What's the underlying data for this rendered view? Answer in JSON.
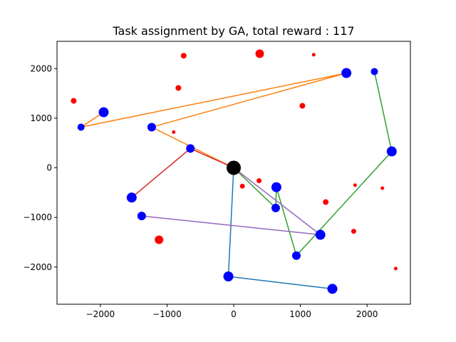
{
  "chart_data": {
    "type": "scatter",
    "title": "Task assignment by GA, total reward : 117",
    "xlabel": "",
    "ylabel": "",
    "xlim": [
      -2650,
      2650
    ],
    "ylim": [
      -2750,
      2550
    ],
    "xticks": [
      -2000,
      -1000,
      0,
      1000,
      2000
    ],
    "yticks": [
      -2000,
      -1000,
      0,
      1000,
      2000
    ],
    "grid": false,
    "depot": {
      "x": 0,
      "y": 0,
      "size": 10,
      "color": "#000000"
    },
    "assigned_color": "#0000ff",
    "unassigned_color": "#ff0000",
    "assigned_tasks": [
      {
        "x": 1690,
        "y": 1910,
        "size": 7
      },
      {
        "x": 2110,
        "y": 1940,
        "size": 5
      },
      {
        "x": -1950,
        "y": 1120,
        "size": 7
      },
      {
        "x": -2290,
        "y": 820,
        "size": 5
      },
      {
        "x": -1230,
        "y": 820,
        "size": 6
      },
      {
        "x": -650,
        "y": 390,
        "size": 6
      },
      {
        "x": 2370,
        "y": 330,
        "size": 7
      },
      {
        "x": 640,
        "y": -390,
        "size": 7
      },
      {
        "x": 630,
        "y": -810,
        "size": 6
      },
      {
        "x": -1530,
        "y": -600,
        "size": 7
      },
      {
        "x": -1380,
        "y": -970,
        "size": 6
      },
      {
        "x": 1300,
        "y": -1350,
        "size": 7
      },
      {
        "x": 940,
        "y": -1770,
        "size": 6
      },
      {
        "x": -80,
        "y": -2190,
        "size": 7
      },
      {
        "x": 1480,
        "y": -2440,
        "size": 7
      }
    ],
    "unassigned_tasks": [
      {
        "x": -750,
        "y": 2260,
        "size": 4
      },
      {
        "x": 390,
        "y": 2300,
        "size": 6
      },
      {
        "x": 1200,
        "y": 2280,
        "size": 2.5
      },
      {
        "x": -830,
        "y": 1610,
        "size": 4
      },
      {
        "x": -2400,
        "y": 1350,
        "size": 4
      },
      {
        "x": 1030,
        "y": 1250,
        "size": 4
      },
      {
        "x": -900,
        "y": 720,
        "size": 2.5
      },
      {
        "x": 380,
        "y": -260,
        "size": 3.5
      },
      {
        "x": 130,
        "y": -370,
        "size": 3.5
      },
      {
        "x": 1820,
        "y": -350,
        "size": 2.5
      },
      {
        "x": 2230,
        "y": -410,
        "size": 2.5
      },
      {
        "x": 1380,
        "y": -690,
        "size": 4
      },
      {
        "x": 1800,
        "y": -1280,
        "size": 3.5
      },
      {
        "x": -1120,
        "y": -1450,
        "size": 6
      },
      {
        "x": 2430,
        "y": -2030,
        "size": 2.5
      }
    ],
    "routes": [
      {
        "color": "#1f77b4",
        "points": [
          [
            0,
            0
          ],
          [
            -80,
            -2190
          ],
          [
            1480,
            -2440
          ]
        ]
      },
      {
        "color": "#ff7f0e",
        "points": [
          [
            0,
            0
          ],
          [
            -1230,
            820
          ],
          [
            1690,
            1910
          ],
          [
            -2290,
            820
          ],
          [
            -1950,
            1120
          ]
        ]
      },
      {
        "color": "#2ca02c",
        "points": [
          [
            0,
            0
          ],
          [
            630,
            -810
          ],
          [
            640,
            -390
          ],
          [
            940,
            -1770
          ],
          [
            2370,
            330
          ],
          [
            2110,
            1940
          ]
        ]
      },
      {
        "color": "#d62728",
        "points": [
          [
            0,
            0
          ],
          [
            -650,
            390
          ],
          [
            -1530,
            -600
          ]
        ]
      },
      {
        "color": "#9467bd",
        "points": [
          [
            0,
            0
          ],
          [
            1300,
            -1350
          ],
          [
            -1380,
            -970
          ]
        ]
      }
    ]
  }
}
